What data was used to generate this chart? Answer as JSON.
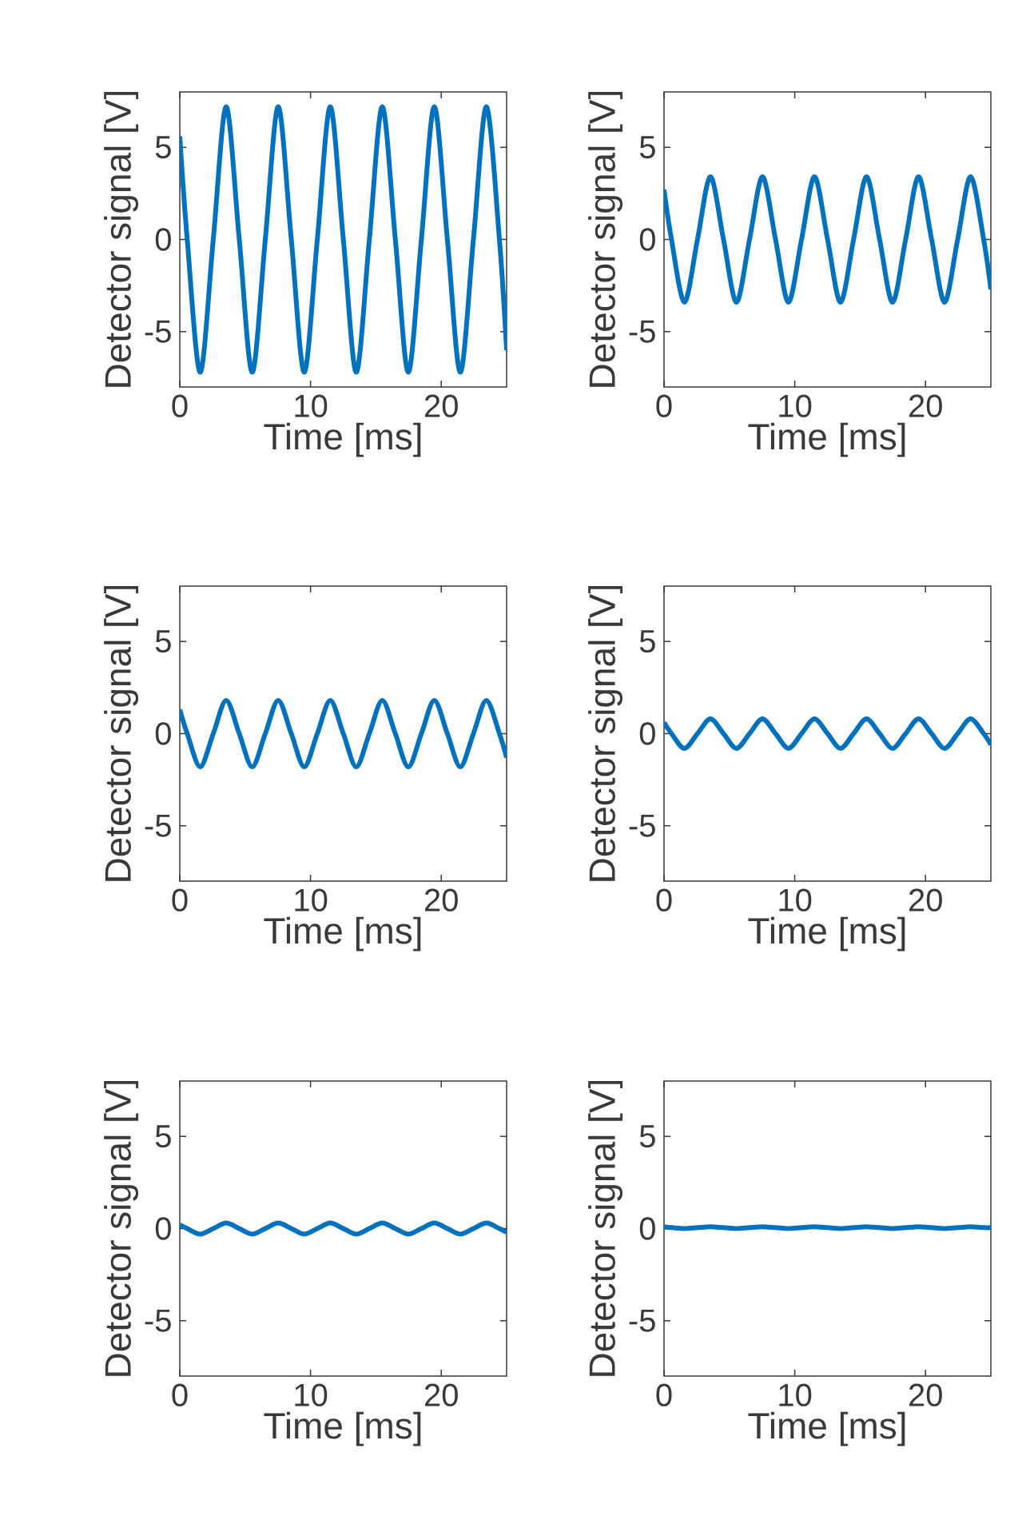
{
  "chart_data": [
    {
      "type": "line",
      "xlabel": "Time [ms]",
      "ylabel": "Detector signal [V]",
      "color": "#0072bd",
      "xlim": [
        0,
        25
      ],
      "ylim": [
        -8,
        8
      ],
      "xticks": [
        0,
        10,
        20
      ],
      "yticks": [
        -5,
        0,
        5
      ],
      "x": [
        0,
        0.57,
        1.56,
        2.56,
        3.55,
        4.55,
        5.54,
        6.54,
        7.53,
        8.53,
        9.52,
        10.52,
        11.51,
        12.51,
        13.5,
        14.5,
        15.49,
        16.49,
        17.48,
        18.48,
        19.47,
        20.47,
        21.46,
        22.46,
        23.45,
        24.45,
        25
      ],
      "values": [
        5.6,
        0,
        -7.2,
        0,
        7.2,
        0,
        -7.2,
        0,
        7.2,
        0,
        -7.2,
        0,
        7.2,
        0,
        -7.2,
        0,
        7.2,
        0,
        -7.2,
        0,
        7.2,
        0,
        -7.2,
        0,
        7.2,
        0,
        -6
      ]
    },
    {
      "type": "line",
      "xlabel": "Time [ms]",
      "ylabel": "Detector signal [V]",
      "color": "#0072bd",
      "xlim": [
        0,
        25
      ],
      "ylim": [
        -8,
        8
      ],
      "xticks": [
        0,
        10,
        20
      ],
      "yticks": [
        -5,
        0,
        5
      ],
      "x": [
        0,
        0.57,
        1.56,
        2.56,
        3.55,
        4.55,
        5.54,
        6.54,
        7.53,
        8.53,
        9.52,
        10.52,
        11.51,
        12.51,
        13.5,
        14.5,
        15.49,
        16.49,
        17.48,
        18.48,
        19.47,
        20.47,
        21.46,
        22.46,
        23.45,
        24.45,
        25
      ],
      "values": [
        2.7,
        0,
        -3.4,
        0,
        3.4,
        0,
        -3.4,
        0,
        3.4,
        0,
        -3.4,
        0,
        3.4,
        0,
        -3.4,
        0,
        3.4,
        0,
        -3.4,
        0,
        3.4,
        0,
        -3.4,
        0,
        3.4,
        0,
        -2.7
      ]
    },
    {
      "type": "line",
      "xlabel": "Time [ms]",
      "ylabel": "Detector signal [V]",
      "color": "#0072bd",
      "xlim": [
        0,
        25
      ],
      "ylim": [
        -8,
        8
      ],
      "xticks": [
        0,
        10,
        20
      ],
      "yticks": [
        -5,
        0,
        5
      ],
      "x": [
        0,
        0.57,
        1.56,
        2.56,
        3.55,
        4.55,
        5.54,
        6.54,
        7.53,
        8.53,
        9.52,
        10.52,
        11.51,
        12.51,
        13.5,
        14.5,
        15.49,
        16.49,
        17.48,
        18.48,
        19.47,
        20.47,
        21.46,
        22.46,
        23.45,
        24.45,
        25
      ],
      "values": [
        1.3,
        0,
        -1.8,
        0,
        1.8,
        0,
        -1.8,
        0,
        1.8,
        0,
        -1.8,
        0,
        1.8,
        0,
        -1.8,
        0,
        1.8,
        0,
        -1.8,
        0,
        1.8,
        0,
        -1.8,
        0,
        1.8,
        0,
        -1.3
      ]
    },
    {
      "type": "line",
      "xlabel": "Time [ms]",
      "ylabel": "Detector signal [V]",
      "color": "#0072bd",
      "xlim": [
        0,
        25
      ],
      "ylim": [
        -8,
        8
      ],
      "xticks": [
        0,
        10,
        20
      ],
      "yticks": [
        -5,
        0,
        5
      ],
      "x": [
        0,
        0.57,
        1.56,
        2.56,
        3.55,
        4.55,
        5.54,
        6.54,
        7.53,
        8.53,
        9.52,
        10.52,
        11.51,
        12.51,
        13.5,
        14.5,
        15.49,
        16.49,
        17.48,
        18.48,
        19.47,
        20.47,
        21.46,
        22.46,
        23.45,
        24.45,
        25
      ],
      "values": [
        0.6,
        0,
        -0.8,
        0,
        0.8,
        0,
        -0.8,
        0,
        0.8,
        0,
        -0.8,
        0,
        0.8,
        0,
        -0.8,
        0,
        0.8,
        0,
        -0.8,
        0,
        0.8,
        0,
        -0.8,
        0,
        0.8,
        0,
        -0.6
      ]
    },
    {
      "type": "line",
      "xlabel": "Time [ms]",
      "ylabel": "Detector signal [V]",
      "color": "#0072bd",
      "xlim": [
        0,
        25
      ],
      "ylim": [
        -8,
        8
      ],
      "xticks": [
        0,
        10,
        20
      ],
      "yticks": [
        -5,
        0,
        5
      ],
      "x": [
        0,
        0.57,
        1.56,
        2.56,
        3.55,
        4.55,
        5.54,
        6.54,
        7.53,
        8.53,
        9.52,
        10.52,
        11.51,
        12.51,
        13.5,
        14.5,
        15.49,
        16.49,
        17.48,
        18.48,
        19.47,
        20.47,
        21.46,
        22.46,
        23.45,
        24.45,
        25
      ],
      "values": [
        0.2,
        0,
        -0.3,
        0,
        0.3,
        0,
        -0.3,
        0,
        0.3,
        0,
        -0.3,
        0,
        0.3,
        0,
        -0.3,
        0,
        0.3,
        0,
        -0.3,
        0,
        0.3,
        0,
        -0.3,
        0,
        0.3,
        0,
        -0.2
      ]
    },
    {
      "type": "line",
      "xlabel": "Time [ms]",
      "ylabel": "Detector signal [V]",
      "color": "#0072bd",
      "xlim": [
        0,
        25
      ],
      "ylim": [
        -8,
        8
      ],
      "xticks": [
        0,
        10,
        20
      ],
      "yticks": [
        -5,
        0,
        5
      ],
      "x": [
        0,
        0.57,
        1.56,
        2.56,
        3.55,
        4.55,
        5.54,
        6.54,
        7.53,
        8.53,
        9.52,
        10.52,
        11.51,
        12.51,
        13.5,
        14.5,
        15.49,
        16.49,
        17.48,
        18.48,
        19.47,
        20.47,
        21.46,
        22.46,
        23.45,
        24.45,
        25
      ],
      "values": [
        0.1,
        0.05,
        0,
        0.05,
        0.1,
        0.05,
        0,
        0.05,
        0.1,
        0.05,
        0,
        0.05,
        0.1,
        0.05,
        0,
        0.05,
        0.1,
        0.05,
        0,
        0.05,
        0.1,
        0.05,
        0,
        0.05,
        0.1,
        0.05,
        0.05
      ]
    }
  ]
}
